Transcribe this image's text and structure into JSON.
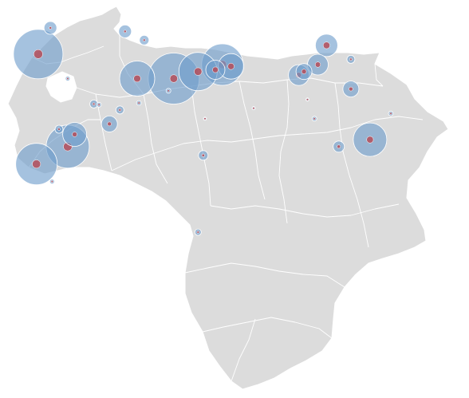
{
  "map": {
    "country": "Venezuela",
    "base_color": "#dcdcdc",
    "border_color": "#ffffff",
    "bubble_color": "#6d9ccc",
    "bubble_opacity": 0.62,
    "core_color": "#b44d5a"
  },
  "points": [
    {
      "id": "maracaibo-west",
      "lon": -72.2,
      "lat": 10.75,
      "size": 31,
      "core": 0.18
    },
    {
      "id": "maracaibo-north",
      "lon": -71.85,
      "lat": 11.5,
      "size": 8,
      "core": 0.2
    },
    {
      "id": "maracaibo-east",
      "lon": -71.35,
      "lat": 10.05,
      "size": 3,
      "core": 0.3
    },
    {
      "id": "coro",
      "lon": -69.7,
      "lat": 11.4,
      "size": 8,
      "core": 0.2
    },
    {
      "id": "punto-fijo",
      "lon": -69.15,
      "lat": 11.15,
      "size": 6,
      "core": 0.25
    },
    {
      "id": "barquisimeto",
      "lon": -69.35,
      "lat": 10.05,
      "size": 22,
      "core": 0.2
    },
    {
      "id": "valencia",
      "lon": -68.3,
      "lat": 10.05,
      "size": 32,
      "core": 0.15
    },
    {
      "id": "maracay",
      "lon": -67.6,
      "lat": 10.25,
      "size": 24,
      "core": 0.2
    },
    {
      "id": "caracas",
      "lon": -66.9,
      "lat": 10.45,
      "size": 26,
      "core": 0.2
    },
    {
      "id": "guarenas",
      "lon": -66.65,
      "lat": 10.4,
      "size": 16,
      "core": 0.25
    },
    {
      "id": "los-teques",
      "lon": -67.1,
      "lat": 10.3,
      "size": 12,
      "core": 0.3
    },
    {
      "id": "barcelona",
      "lon": -64.7,
      "lat": 10.15,
      "size": 13,
      "core": 0.25
    },
    {
      "id": "puerto-la-cruz",
      "lon": -64.55,
      "lat": 10.25,
      "size": 10,
      "core": 0.3
    },
    {
      "id": "margarita",
      "lon": -63.9,
      "lat": 11.0,
      "size": 14,
      "core": 0.3
    },
    {
      "id": "cumana",
      "lon": -64.15,
      "lat": 10.45,
      "size": 13,
      "core": 0.25
    },
    {
      "id": "carupano",
      "lon": -63.2,
      "lat": 10.6,
      "size": 5,
      "core": 0.3
    },
    {
      "id": "maturin",
      "lon": -63.2,
      "lat": 9.75,
      "size": 10,
      "core": 0.25
    },
    {
      "id": "san-carlos",
      "lon": -68.45,
      "lat": 9.7,
      "size": 3,
      "core": 0.3
    },
    {
      "id": "acarigua",
      "lon": -69.3,
      "lat": 9.35,
      "size": 3,
      "core": 0.3
    },
    {
      "id": "guanare",
      "lon": -69.85,
      "lat": 9.15,
      "size": 5,
      "core": 0.3
    },
    {
      "id": "trujillo",
      "lon": -70.45,
      "lat": 9.3,
      "size": 3,
      "core": 0.3
    },
    {
      "id": "valera",
      "lon": -70.6,
      "lat": 9.32,
      "size": 5,
      "core": 0.3
    },
    {
      "id": "barinas",
      "lon": -70.15,
      "lat": 8.75,
      "size": 10,
      "core": 0.25
    },
    {
      "id": "merida",
      "lon": -71.15,
      "lat": 8.45,
      "size": 15,
      "core": 0.2
    },
    {
      "id": "merida-north",
      "lon": -71.6,
      "lat": 8.6,
      "size": 5,
      "core": 0.3
    },
    {
      "id": "el-vigia",
      "lon": -71.35,
      "lat": 8.1,
      "size": 27,
      "core": 0.2
    },
    {
      "id": "san-cristobal",
      "lon": -72.25,
      "lat": 7.6,
      "size": 26,
      "core": 0.2
    },
    {
      "id": "tachira-south",
      "lon": -71.8,
      "lat": 7.1,
      "size": 3,
      "core": 0.3
    },
    {
      "id": "san-fernando",
      "lon": -67.45,
      "lat": 7.85,
      "size": 6,
      "core": 0.3
    },
    {
      "id": "calabozo",
      "lon": -67.4,
      "lat": 8.9,
      "size": 2,
      "core": 0.3
    },
    {
      "id": "valle-pascua",
      "lon": -66.0,
      "lat": 9.2,
      "size": 2,
      "core": 0.3
    },
    {
      "id": "el-tigre",
      "lon": -64.25,
      "lat": 8.9,
      "size": 3,
      "core": 0.3
    },
    {
      "id": "anaco",
      "lon": -64.45,
      "lat": 9.45,
      "size": 2,
      "core": 0.3
    },
    {
      "id": "ciudad-bolivar",
      "lon": -63.55,
      "lat": 8.1,
      "size": 7,
      "core": 0.3
    },
    {
      "id": "puerto-ordaz",
      "lon": -62.65,
      "lat": 8.3,
      "size": 21,
      "core": 0.2
    },
    {
      "id": "tucupita",
      "lon": -62.05,
      "lat": 9.05,
      "size": 3,
      "core": 0.3
    },
    {
      "id": "puerto-ayacucho",
      "lon": -67.6,
      "lat": 5.65,
      "size": 4,
      "core": 0.35
    }
  ]
}
